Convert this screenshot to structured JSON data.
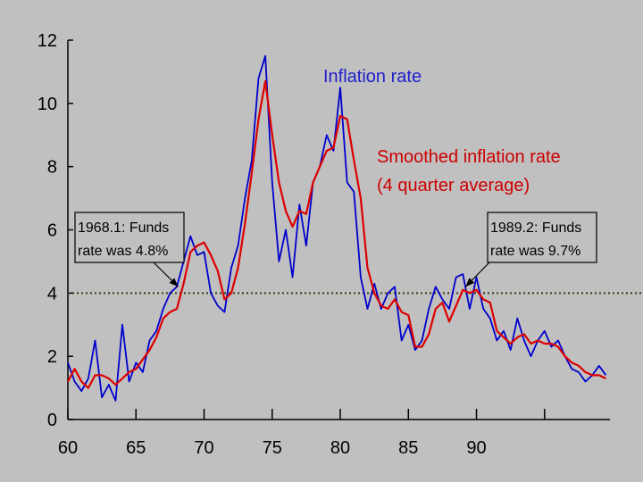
{
  "chart_data": {
    "type": "line",
    "title": "",
    "xlabel": "",
    "ylabel": "",
    "xlim": [
      1960,
      1999.8
    ],
    "ylim": [
      0,
      12
    ],
    "x_tick_labels": [
      "60",
      "65",
      "70",
      "75",
      "80",
      "85",
      "90"
    ],
    "x_tick_values": [
      1960,
      1965,
      1970,
      1975,
      1980,
      1985,
      1990
    ],
    "x_minor_ticks": [
      1995
    ],
    "y_tick_labels": [
      "0",
      "2",
      "4",
      "6",
      "8",
      "10",
      "12"
    ],
    "y_tick_values": [
      0,
      2,
      4,
      6,
      8,
      10,
      12
    ],
    "grid": false,
    "reference_line": {
      "y": 4,
      "style": "dotted",
      "color": "#3a3a10"
    },
    "series": [
      {
        "name": "Inflation rate",
        "color": "#0000cc",
        "x": [
          1960.0,
          1960.5,
          1961.0,
          1961.5,
          1962.0,
          1962.5,
          1963.0,
          1963.5,
          1964.0,
          1964.5,
          1965.0,
          1965.5,
          1966.0,
          1966.5,
          1967.0,
          1967.5,
          1968.0,
          1968.5,
          1969.0,
          1969.5,
          1970.0,
          1970.5,
          1971.0,
          1971.5,
          1972.0,
          1972.5,
          1973.0,
          1973.5,
          1974.0,
          1974.5,
          1975.0,
          1975.5,
          1976.0,
          1976.5,
          1977.0,
          1977.5,
          1978.0,
          1978.5,
          1979.0,
          1979.5,
          1980.0,
          1980.5,
          1981.0,
          1981.5,
          1982.0,
          1982.5,
          1983.0,
          1983.5,
          1984.0,
          1984.5,
          1985.0,
          1985.5,
          1986.0,
          1986.5,
          1987.0,
          1987.5,
          1988.0,
          1988.5,
          1989.0,
          1989.5,
          1990.0,
          1990.5,
          1991.0,
          1991.5,
          1992.0,
          1992.5,
          1993.0,
          1993.5,
          1994.0,
          1994.5,
          1995.0,
          1995.5,
          1996.0,
          1996.5,
          1997.0,
          1997.5,
          1998.0,
          1998.5,
          1999.0,
          1999.5
        ],
        "values": [
          1.8,
          1.2,
          0.9,
          1.3,
          2.5,
          0.7,
          1.1,
          0.6,
          3.0,
          1.2,
          1.8,
          1.5,
          2.5,
          2.8,
          3.5,
          4.0,
          4.2,
          5.0,
          5.8,
          5.2,
          5.3,
          4.0,
          3.6,
          3.4,
          4.8,
          5.5,
          7.0,
          8.2,
          10.8,
          11.5,
          7.5,
          5.0,
          6.0,
          4.5,
          6.8,
          5.5,
          7.5,
          8.0,
          9.0,
          8.5,
          10.5,
          7.5,
          7.2,
          4.5,
          3.5,
          4.3,
          3.5,
          4.0,
          4.2,
          2.5,
          3.0,
          2.2,
          2.5,
          3.5,
          4.2,
          3.8,
          3.5,
          4.5,
          4.6,
          3.5,
          4.5,
          3.5,
          3.2,
          2.5,
          2.8,
          2.2,
          3.2,
          2.5,
          2.0,
          2.5,
          2.8,
          2.3,
          2.5,
          2.0,
          1.6,
          1.5,
          1.2,
          1.4,
          1.7,
          1.4
        ]
      },
      {
        "name": "Smoothed inflation rate\n(4 quarter average)",
        "color": "#dd0000",
        "x": [
          1960.0,
          1960.5,
          1961.0,
          1961.5,
          1962.0,
          1962.5,
          1963.0,
          1963.5,
          1964.0,
          1964.5,
          1965.0,
          1965.5,
          1966.0,
          1966.5,
          1967.0,
          1967.5,
          1968.0,
          1968.5,
          1969.0,
          1969.5,
          1970.0,
          1970.5,
          1971.0,
          1971.5,
          1972.0,
          1972.5,
          1973.0,
          1973.5,
          1974.0,
          1974.5,
          1975.0,
          1975.5,
          1976.0,
          1976.5,
          1977.0,
          1977.5,
          1978.0,
          1978.5,
          1979.0,
          1979.5,
          1980.0,
          1980.5,
          1981.0,
          1981.5,
          1982.0,
          1982.5,
          1983.0,
          1983.5,
          1984.0,
          1984.5,
          1985.0,
          1985.5,
          1986.0,
          1986.5,
          1987.0,
          1987.5,
          1988.0,
          1988.5,
          1989.0,
          1989.5,
          1990.0,
          1990.5,
          1991.0,
          1991.5,
          1992.0,
          1992.5,
          1993.0,
          1993.5,
          1994.0,
          1994.5,
          1995.0,
          1995.5,
          1996.0,
          1996.5,
          1997.0,
          1997.5,
          1998.0,
          1998.5,
          1999.0,
          1999.5
        ],
        "values": [
          1.2,
          1.6,
          1.2,
          1.0,
          1.4,
          1.4,
          1.3,
          1.1,
          1.3,
          1.5,
          1.6,
          1.9,
          2.2,
          2.6,
          3.2,
          3.4,
          3.5,
          4.3,
          5.3,
          5.5,
          5.6,
          5.2,
          4.7,
          3.8,
          4.0,
          4.8,
          6.2,
          7.8,
          9.5,
          10.7,
          9.0,
          7.5,
          6.6,
          6.1,
          6.6,
          6.5,
          7.5,
          8.0,
          8.5,
          8.6,
          9.6,
          9.5,
          8.2,
          7.0,
          4.8,
          4.0,
          3.6,
          3.5,
          3.8,
          3.4,
          3.3,
          2.3,
          2.3,
          2.7,
          3.5,
          3.7,
          3.1,
          3.6,
          4.1,
          4.0,
          4.1,
          3.8,
          3.7,
          2.8,
          2.6,
          2.4,
          2.6,
          2.7,
          2.4,
          2.5,
          2.4,
          2.4,
          2.3,
          2.0,
          1.8,
          1.7,
          1.5,
          1.4,
          1.4,
          1.3
        ]
      }
    ],
    "annotations": [
      {
        "lines": [
          "1968.1: Funds",
          "rate was 4.8%"
        ],
        "point": [
          1968.1,
          4.2
        ]
      },
      {
        "lines": [
          "1989.2: Funds",
          "rate was 9.7%"
        ],
        "point": [
          1989.2,
          4.2
        ]
      }
    ]
  },
  "labels": {
    "inflation": "Inflation rate",
    "smoothed_line1": "Smoothed inflation rate",
    "smoothed_line2": "(4 quarter average)"
  }
}
